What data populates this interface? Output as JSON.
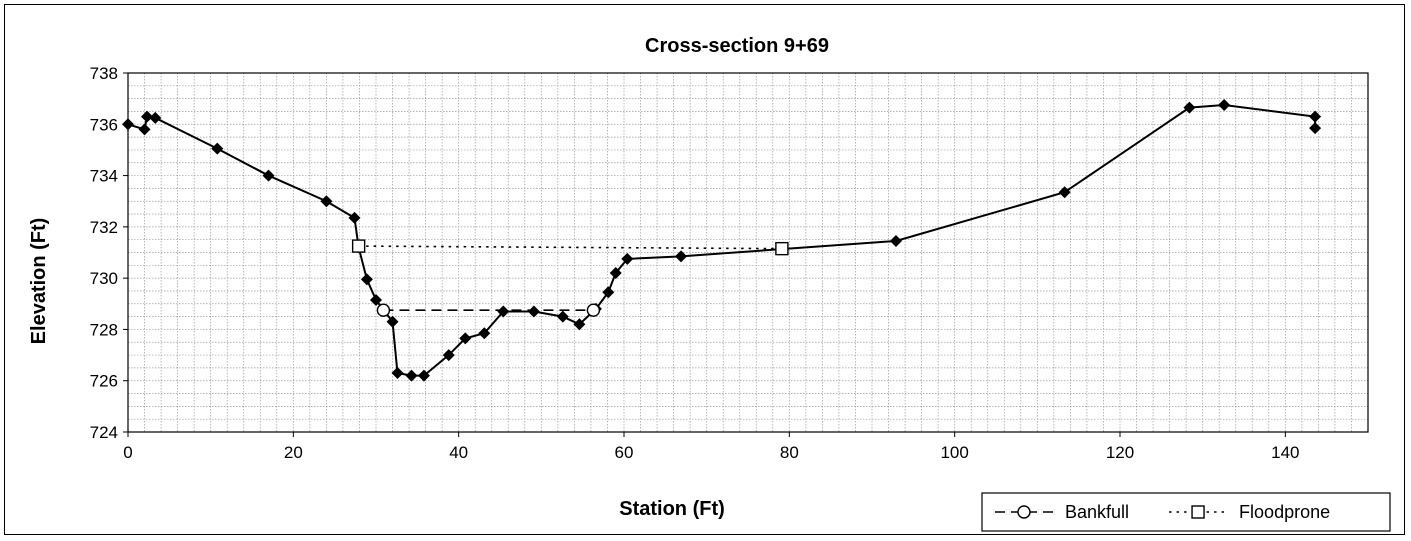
{
  "chart_data": {
    "type": "line",
    "title": "Cross-section 9+69",
    "xlabel": "Station (Ft)",
    "ylabel": "Elevation (Ft)",
    "xlim": [
      0,
      150
    ],
    "ylim": [
      724,
      738
    ],
    "x_ticks": [
      0,
      20,
      40,
      60,
      80,
      100,
      120,
      140
    ],
    "y_ticks": [
      724,
      726,
      728,
      730,
      732,
      734,
      736,
      738
    ],
    "x_minor_step": 2,
    "y_minor_step": 0.5,
    "grid": true,
    "legend_position": "bottom-right",
    "series": [
      {
        "name": "",
        "marker": "diamond",
        "color": "#000000",
        "points": [
          [
            0,
            736.0
          ],
          [
            2,
            735.8
          ],
          [
            2.3,
            736.3
          ],
          [
            3.3,
            736.25
          ],
          [
            10.8,
            735.05
          ],
          [
            17,
            734.0
          ],
          [
            24,
            733.0
          ],
          [
            27.4,
            732.35
          ],
          [
            27.9,
            731.2
          ],
          [
            28.9,
            729.95
          ],
          [
            30,
            729.15
          ],
          [
            32,
            728.3
          ],
          [
            32.6,
            726.3
          ],
          [
            34.3,
            726.2
          ],
          [
            35.8,
            726.2
          ],
          [
            38.8,
            727.0
          ],
          [
            40.8,
            727.65
          ],
          [
            43.1,
            727.85
          ],
          [
            45.4,
            728.7
          ],
          [
            49.1,
            728.7
          ],
          [
            52.6,
            728.5
          ],
          [
            54.6,
            728.2
          ],
          [
            56.6,
            728.8
          ],
          [
            58.1,
            729.45
          ],
          [
            59,
            730.2
          ],
          [
            60.4,
            730.75
          ],
          [
            66.9,
            730.85
          ],
          [
            92.9,
            731.45
          ],
          [
            113.3,
            733.35
          ],
          [
            128.4,
            736.65
          ],
          [
            132.6,
            736.75
          ],
          [
            143.6,
            736.3
          ],
          [
            143.6,
            735.85
          ]
        ]
      },
      {
        "name": "Bankfull",
        "marker": "circle",
        "line": "dashed",
        "color": "#000000",
        "points": [
          [
            30.9,
            728.75
          ],
          [
            56.3,
            728.75
          ]
        ]
      },
      {
        "name": "Floodprone",
        "marker": "square",
        "line": "dotted",
        "color": "#000000",
        "points": [
          [
            27.9,
            731.25
          ],
          [
            79.1,
            731.15
          ]
        ]
      }
    ]
  }
}
